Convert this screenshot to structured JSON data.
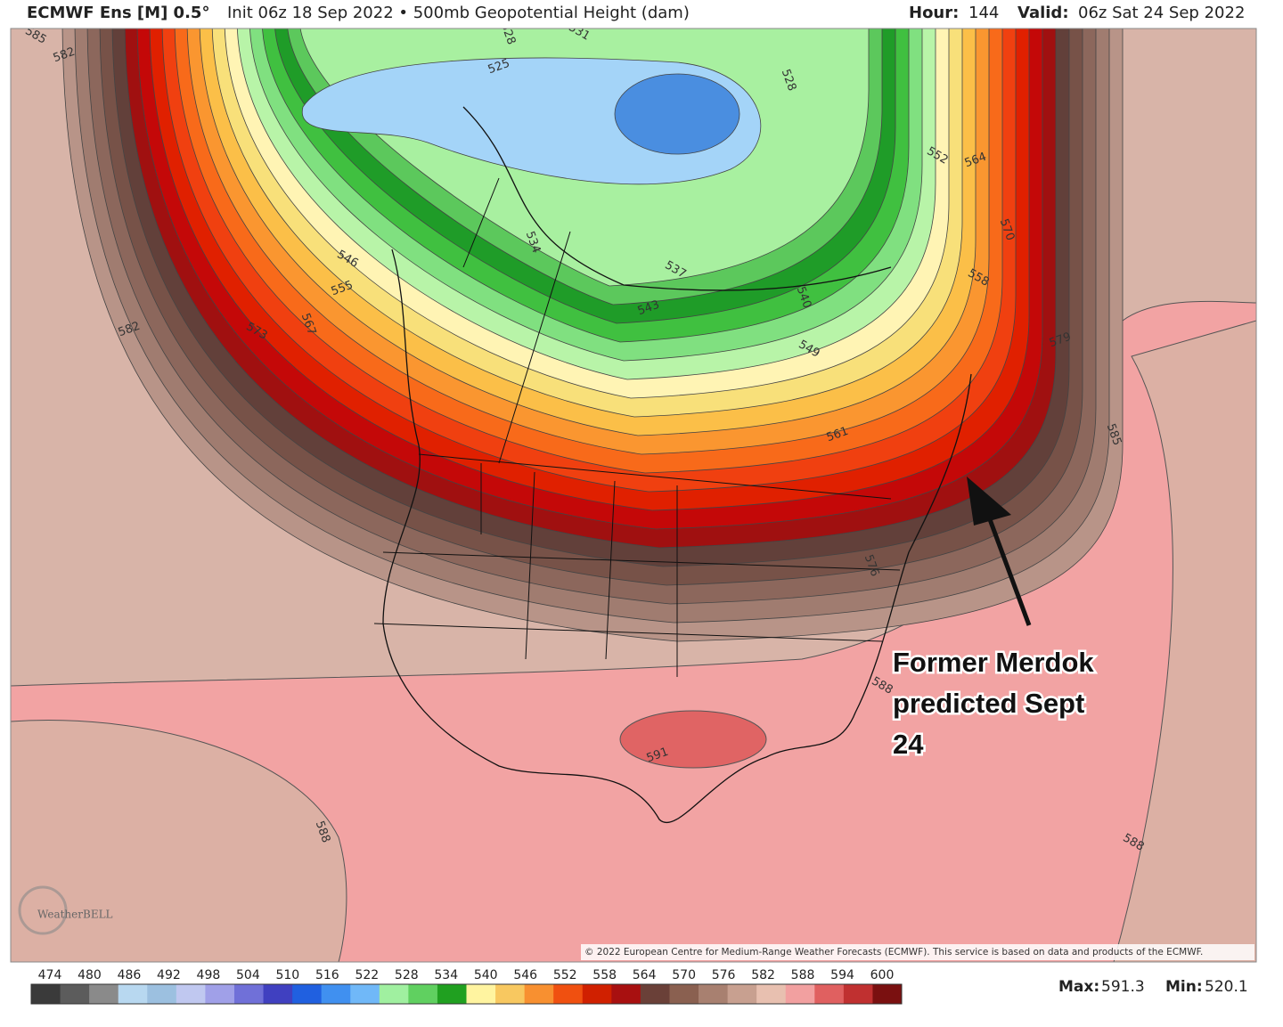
{
  "header": {
    "title": "ECMWF Ens [M] 0.5°",
    "subtitle": "Init 06z 18 Sep 2022 • 500mb Geopotential Height (dam)",
    "hour_label": "Hour:",
    "hour": "144",
    "valid_label": "Valid:",
    "valid": "06z Sat 24 Sep 2022"
  },
  "map": {
    "contour_labels": [
      "585",
      "582",
      "528",
      "531",
      "525",
      "528",
      "552",
      "564",
      "570",
      "558",
      "579",
      "585",
      "546",
      "555",
      "567",
      "573",
      "582",
      "534",
      "537",
      "543",
      "540",
      "549",
      "561",
      "576",
      "588",
      "591",
      "588",
      "588"
    ],
    "annotation": [
      "Former Merdok",
      "predicted Sept",
      "24"
    ],
    "logo": "WeatherBELL",
    "copyright": "© 2022 European Centre for Medium-Range Weather Forecasts (ECMWF). This service is based on data and products of the ECMWF."
  },
  "colorbar": {
    "labels": [
      "474",
      "480",
      "486",
      "492",
      "498",
      "504",
      "510",
      "516",
      "522",
      "528",
      "534",
      "540",
      "546",
      "552",
      "558",
      "564",
      "570",
      "576",
      "582",
      "588",
      "594",
      "600"
    ],
    "colors": [
      "#3a3a3a",
      "#5c5c5c",
      "#8a8a8a",
      "#b8d8f0",
      "#9cc0e0",
      "#c0c8f0",
      "#a0a0e8",
      "#7070d8",
      "#4040c0",
      "#2060e0",
      "#4090f0",
      "#70b8f8",
      "#a0f0a0",
      "#60d060",
      "#20a020",
      "#fff4a0",
      "#f8c860",
      "#f89030",
      "#f05010",
      "#d02000",
      "#a81010",
      "#6a4038",
      "#8a6050",
      "#a88070",
      "#c8a090",
      "#e8c0b0",
      "#f2a0a0",
      "#e06060",
      "#c03030",
      "#7a1010"
    ]
  },
  "footer": {
    "max_label": "Max:",
    "max": "591.3",
    "min_label": "Min:",
    "min": "520.1"
  }
}
